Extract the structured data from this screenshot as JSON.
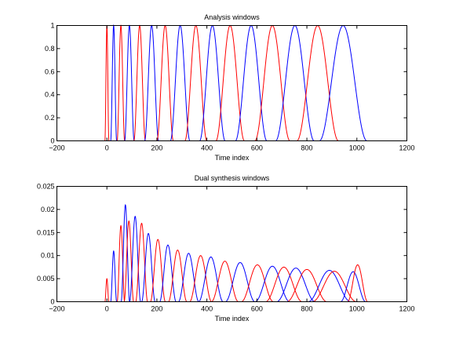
{
  "chart_data": [
    {
      "type": "line",
      "title": "Analysis windows",
      "xlabel": "Time index",
      "ylabel": "",
      "xlim": [
        -200,
        1200
      ],
      "ylim": [
        0,
        1
      ],
      "xticks": [
        "−200",
        "0",
        "200",
        "400",
        "600",
        "800",
        "1000",
        "1200"
      ],
      "xtick_values": [
        -200,
        0,
        200,
        400,
        600,
        800,
        1000,
        1200
      ],
      "yticks": [
        "0",
        "0.2",
        "0.4",
        "0.6",
        "0.8",
        "1"
      ],
      "ytick_values": [
        0,
        0.2,
        0.4,
        0.6,
        0.8,
        1
      ],
      "series_colors": [
        "#ff0000",
        "#0000ff"
      ],
      "windows": [
        {
          "center": 0,
          "halfwidth": 8
        },
        {
          "center": 27,
          "halfwidth": 12
        },
        {
          "center": 56,
          "halfwidth": 15
        },
        {
          "center": 90,
          "halfwidth": 19
        },
        {
          "center": 131,
          "halfwidth": 23
        },
        {
          "center": 179,
          "halfwidth": 28
        },
        {
          "center": 233,
          "halfwidth": 33
        },
        {
          "center": 293,
          "halfwidth": 39
        },
        {
          "center": 356,
          "halfwidth": 44
        },
        {
          "center": 422,
          "halfwidth": 51
        },
        {
          "center": 493,
          "halfwidth": 57
        },
        {
          "center": 577,
          "halfwidth": 63
        },
        {
          "center": 662,
          "halfwidth": 70
        },
        {
          "center": 752,
          "halfwidth": 77
        },
        {
          "center": 843,
          "halfwidth": 83
        },
        {
          "center": 945,
          "halfwidth": 95
        }
      ]
    },
    {
      "type": "line",
      "title": "Dual synthesis windows",
      "xlabel": "Time index",
      "ylabel": "",
      "xlim": [
        -200,
        1200
      ],
      "ylim": [
        0,
        0.025
      ],
      "xticks": [
        "−200",
        "0",
        "200",
        "400",
        "600",
        "800",
        "1000",
        "1200"
      ],
      "xtick_values": [
        -200,
        0,
        200,
        400,
        600,
        800,
        1000,
        1200
      ],
      "yticks": [
        "0",
        "0.005",
        "0.01",
        "0.015",
        "0.02",
        "0.025"
      ],
      "ytick_values": [
        0,
        0.005,
        0.01,
        0.015,
        0.02,
        0.025
      ],
      "series_colors": [
        "#ff0000",
        "#0000ff"
      ],
      "windows": [
        {
          "center": 0,
          "halfwidth": 8,
          "peak": 0.005
        },
        {
          "center": 27,
          "halfwidth": 12,
          "peak": 0.011
        },
        {
          "center": 56,
          "halfwidth": 15,
          "peak": 0.0165
        },
        {
          "center": 74,
          "halfwidth": 17,
          "peak": 0.021
        },
        {
          "center": 88,
          "halfwidth": 19,
          "peak": 0.0175
        },
        {
          "center": 113,
          "halfwidth": 22,
          "peak": 0.0185
        },
        {
          "center": 139,
          "halfwidth": 24,
          "peak": 0.017
        },
        {
          "center": 166,
          "halfwidth": 27,
          "peak": 0.0148
        },
        {
          "center": 204,
          "halfwidth": 30,
          "peak": 0.0135
        },
        {
          "center": 244,
          "halfwidth": 33,
          "peak": 0.0123
        },
        {
          "center": 283,
          "halfwidth": 37,
          "peak": 0.0112
        },
        {
          "center": 327,
          "halfwidth": 41,
          "peak": 0.0105
        },
        {
          "center": 375,
          "halfwidth": 44,
          "peak": 0.01
        },
        {
          "center": 416,
          "halfwidth": 49,
          "peak": 0.0097
        },
        {
          "center": 472,
          "halfwidth": 54,
          "peak": 0.0088
        },
        {
          "center": 533,
          "halfwidth": 59,
          "peak": 0.0085
        },
        {
          "center": 602,
          "halfwidth": 64,
          "peak": 0.008
        },
        {
          "center": 662,
          "halfwidth": 69,
          "peak": 0.0077
        },
        {
          "center": 708,
          "halfwidth": 73,
          "peak": 0.0075
        },
        {
          "center": 756,
          "halfwidth": 77,
          "peak": 0.0073
        },
        {
          "center": 800,
          "halfwidth": 80,
          "peak": 0.007
        },
        {
          "center": 890,
          "halfwidth": 85,
          "peak": 0.0068
        },
        {
          "center": 910,
          "halfwidth": 88,
          "peak": 0.0066
        },
        {
          "center": 985,
          "halfwidth": 50,
          "peak": 0.0065
        },
        {
          "center": 1003,
          "halfwidth": 40,
          "peak": 0.008
        }
      ]
    }
  ]
}
